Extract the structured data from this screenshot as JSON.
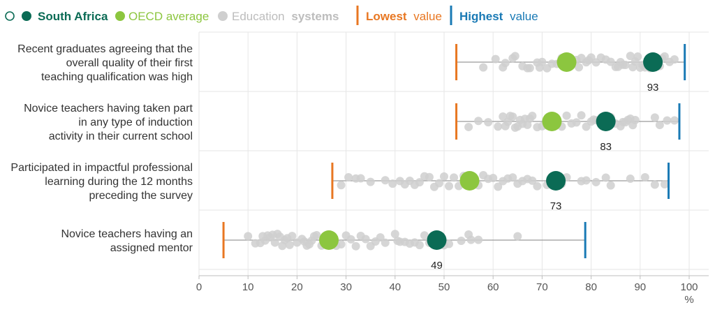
{
  "colors": {
    "south_africa": "#0b6b55",
    "oecd": "#8cc63f",
    "systems": "#cfcfcf",
    "lowest": "#e87722",
    "highest": "#1a7ab5",
    "grid": "#e6e6e6",
    "range_line": "#9a9a9a"
  },
  "legend": {
    "south_africa": "South Africa",
    "oecd_average": "OECD average",
    "education": "Education",
    "systems": "systems",
    "lowest": "Lowest",
    "lowest_value": "value",
    "highest": "Highest",
    "highest_value": "value"
  },
  "chart_data": {
    "type": "dot-range",
    "xlabel": "%",
    "xlim": [
      0,
      100
    ],
    "xticks": [
      0,
      10,
      20,
      30,
      40,
      50,
      60,
      70,
      80,
      90,
      100
    ],
    "grid": true,
    "legend_position": "top-left",
    "rows": [
      {
        "label": [
          "Recent graduates agreeing that the",
          "overall quality of their first",
          "teaching qualification was high"
        ],
        "lowest": 52.5,
        "highest": 99.1,
        "oecd": 75.0,
        "south_africa": 92.6,
        "sa_label": "93",
        "systems": [
          58,
          60.5,
          62,
          62.5,
          64,
          64.5,
          66,
          67,
          67.5,
          69,
          69.5,
          70,
          71,
          72,
          73,
          74,
          76,
          77,
          77.5,
          78,
          79,
          79.5,
          80,
          81,
          82,
          83,
          84,
          85,
          85.5,
          86,
          86.5,
          87,
          88,
          88.5,
          89,
          89.5,
          90,
          90.5,
          91,
          92,
          93.5,
          94,
          94.5,
          95,
          96,
          97
        ]
      },
      {
        "label": [
          "Novice teachers having taken part",
          "in any type of induction",
          "activity in their current school"
        ],
        "lowest": 52.5,
        "highest": 98.0,
        "oecd": 72.0,
        "south_africa": 83.0,
        "sa_label": "83",
        "systems": [
          55,
          57,
          59,
          61,
          62,
          62.5,
          63,
          63.5,
          64,
          64.5,
          65,
          65.5,
          66,
          66.5,
          67,
          67.5,
          68,
          69,
          70,
          71,
          73,
          74,
          75,
          76,
          77,
          78,
          79,
          80,
          80.5,
          81,
          82,
          84,
          85,
          86,
          86.5,
          87,
          87.5,
          88,
          88.5,
          89,
          93,
          94,
          95.5,
          97
        ]
      },
      {
        "label": [
          "Participated in impactful professional",
          "learning during the 12 months",
          "preceding the survey"
        ],
        "lowest": 27.2,
        "highest": 95.8,
        "oecd": 55.2,
        "south_africa": 72.8,
        "sa_label": "73",
        "systems": [
          29,
          30.5,
          32,
          33,
          35,
          38,
          39.5,
          41,
          42,
          43,
          44,
          45,
          46,
          47,
          48,
          49,
          50,
          51,
          52,
          53,
          54,
          56,
          57,
          58,
          59,
          60,
          61,
          62,
          63,
          64,
          65,
          66,
          67,
          68,
          69,
          71,
          74,
          75,
          78,
          79,
          81,
          83,
          84,
          88,
          91,
          93,
          95
        ]
      },
      {
        "label": [
          "Novice teachers having an",
          "assigned mentor"
        ],
        "lowest": 5.0,
        "highest": 78.8,
        "oecd": 26.5,
        "south_africa": 48.5,
        "sa_label": "49",
        "systems": [
          10,
          11.5,
          12.5,
          13,
          13.5,
          14,
          14.5,
          15,
          15.5,
          16,
          16.5,
          17,
          17.5,
          18,
          18.5,
          19,
          20,
          21,
          21.5,
          22,
          22.5,
          23,
          23.5,
          24,
          25,
          28,
          29,
          30,
          31,
          32,
          33,
          34,
          35,
          36,
          37,
          38,
          40,
          40.5,
          41,
          42,
          43,
          44,
          45,
          46,
          47,
          50,
          51,
          53.5,
          55,
          55.5,
          57,
          65
        ]
      }
    ]
  }
}
